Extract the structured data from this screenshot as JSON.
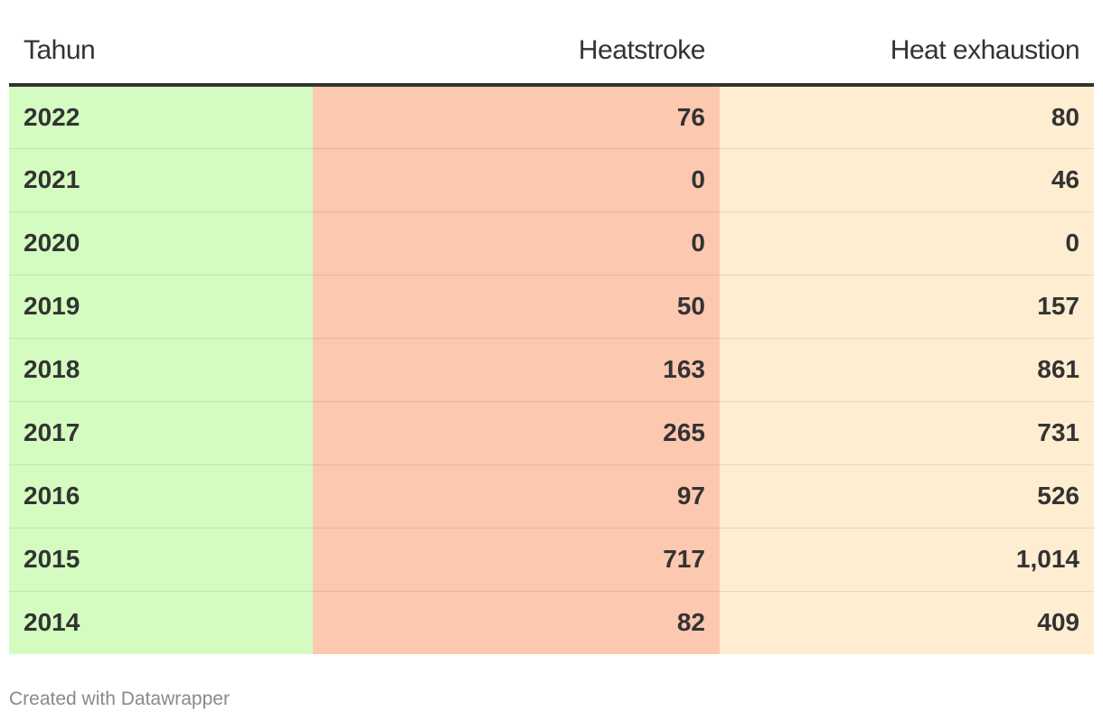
{
  "colors": {
    "year_col": "#d4fcc1",
    "heatstroke_col": "#fdc8b0",
    "exhaustion_col": "#feedd1"
  },
  "chart_data": {
    "type": "table",
    "columns": [
      "Tahun",
      "Heatstroke",
      "Heat exhaustion"
    ],
    "rows": [
      {
        "year": "2022",
        "heatstroke": "76",
        "heat_exhaustion": "80"
      },
      {
        "year": "2021",
        "heatstroke": "0",
        "heat_exhaustion": "46"
      },
      {
        "year": "2020",
        "heatstroke": "0",
        "heat_exhaustion": "0"
      },
      {
        "year": "2019",
        "heatstroke": "50",
        "heat_exhaustion": "157"
      },
      {
        "year": "2018",
        "heatstroke": "163",
        "heat_exhaustion": "861"
      },
      {
        "year": "2017",
        "heatstroke": "265",
        "heat_exhaustion": "731"
      },
      {
        "year": "2016",
        "heatstroke": "97",
        "heat_exhaustion": "526"
      },
      {
        "year": "2015",
        "heatstroke": "717",
        "heat_exhaustion": "1,014"
      },
      {
        "year": "2014",
        "heatstroke": "82",
        "heat_exhaustion": "409"
      }
    ]
  },
  "footer": {
    "credit": "Created with Datawrapper"
  }
}
